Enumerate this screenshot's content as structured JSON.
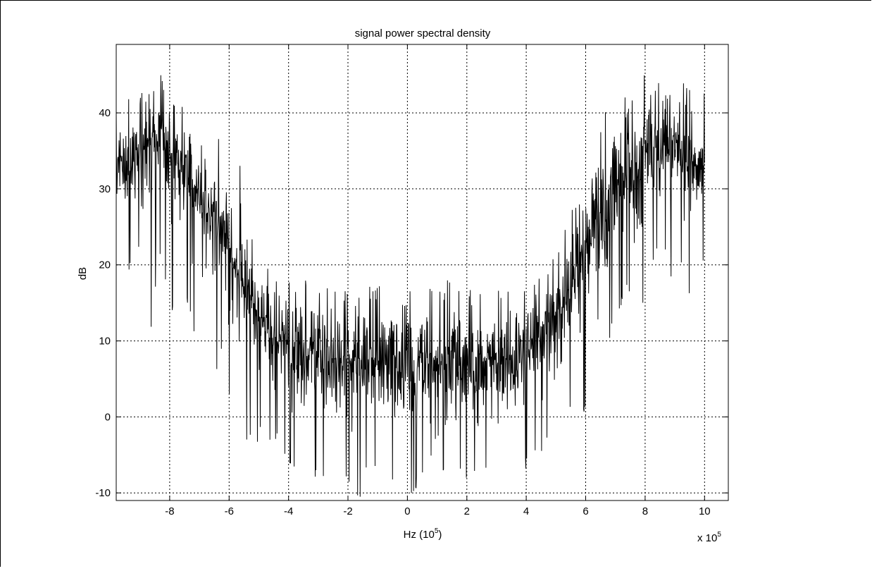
{
  "chart_data": {
    "type": "line",
    "title": "signal power spectral density",
    "xlabel": "Hz (10",
    "xlabel_sup": "5",
    "xlabel_close": ")",
    "ylabel": "dB",
    "x_multiplier_prefix": "x 10",
    "x_multiplier_exp": "5",
    "x_scale": 100000,
    "xlim": [
      -9.8,
      10.8
    ],
    "ylim": [
      -11,
      49
    ],
    "xticks": [
      -8,
      -6,
      -4,
      -2,
      0,
      2,
      4,
      6,
      8,
      10
    ],
    "xtick_labels": [
      "-8",
      "-6",
      "-4",
      "-2",
      "0",
      "2",
      "4",
      "6",
      "8",
      "10"
    ],
    "yticks": [
      -10,
      0,
      10,
      20,
      30,
      40
    ],
    "ytick_labels": [
      "-10",
      "0",
      "10",
      "20",
      "30",
      "40"
    ],
    "grid": true,
    "line_color": "#000000",
    "series": [
      {
        "x": [
          -9.8,
          -9.6,
          -9.4,
          -9.2,
          -9.0,
          -8.8,
          -8.6,
          -8.4,
          -8.2,
          -8.0,
          -7.8,
          -7.6,
          -7.4,
          -7.2,
          -7.0,
          -6.8,
          -6.6,
          -6.4,
          -6.2,
          -6.0,
          -5.8,
          -5.6,
          -5.4,
          -5.2,
          -5.0,
          -4.8,
          -4.6,
          -4.4,
          -4.2,
          -4.0,
          -3.8,
          -3.6,
          -3.4,
          -3.2,
          -3.0,
          -2.8,
          -2.6,
          -2.4,
          -2.2,
          -2.0,
          -1.8,
          -1.6,
          -1.4,
          -1.2,
          -1.0,
          -0.8,
          -0.6,
          -0.4,
          -0.2,
          0.0,
          0.2,
          0.4,
          0.6,
          0.8,
          1.0,
          1.2,
          1.4,
          1.6,
          1.8,
          2.0,
          2.2,
          2.4,
          2.6,
          2.8,
          3.0,
          3.2,
          3.4,
          3.6,
          3.8,
          4.0,
          4.2,
          4.4,
          4.6,
          4.8,
          5.0,
          5.2,
          5.4,
          5.6,
          5.8,
          6.0,
          6.2,
          6.4,
          6.6,
          6.8,
          7.0,
          7.2,
          7.4,
          7.6,
          7.8,
          8.0,
          8.2,
          8.4,
          8.6,
          8.8,
          9.0,
          9.2,
          9.4,
          9.6,
          9.8,
          10.0
        ],
        "upper": [
          42,
          43,
          42,
          44,
          43,
          44,
          42,
          44,
          46,
          44,
          42,
          41,
          41,
          39,
          37,
          35,
          33,
          31,
          30,
          27,
          26,
          24,
          21,
          19,
          18,
          18,
          17,
          18,
          17,
          17,
          17,
          20,
          18,
          17,
          17,
          18,
          17,
          17,
          18,
          17,
          17,
          18,
          19,
          17,
          17,
          18,
          17,
          18,
          17,
          19,
          17,
          18,
          17,
          18,
          17,
          17,
          19,
          18,
          18,
          17,
          17,
          18,
          17,
          17,
          17,
          18,
          18,
          20,
          17,
          17,
          18,
          19,
          19,
          20,
          23,
          23,
          26,
          29,
          30,
          32,
          34,
          37,
          40,
          41,
          43,
          42,
          44,
          43,
          44,
          46,
          44,
          44,
          43,
          44,
          42,
          43,
          44,
          43,
          44,
          43
        ],
        "lower": [
          26,
          25,
          18,
          23,
          22,
          20,
          10,
          21,
          20,
          10,
          19,
          22,
          15,
          10,
          14,
          19,
          13,
          4,
          10,
          3,
          4,
          -6,
          -3,
          -5,
          -3,
          -2,
          -4,
          -4,
          -6,
          -7,
          -7,
          -10,
          -9,
          -11,
          -7,
          -9,
          -8,
          -7,
          -8,
          -9,
          -11,
          -11,
          -8,
          -9,
          -7,
          -9,
          -8,
          -9,
          -8,
          -11,
          -11,
          -8,
          -9,
          -7,
          -9,
          -8,
          -9,
          -8,
          -7,
          -9,
          -9,
          -9,
          -8,
          -8,
          -9,
          -8,
          -9,
          -11,
          -8,
          -7,
          -6,
          -5,
          -5,
          -4,
          -3,
          -3,
          0,
          0,
          -6,
          2,
          4,
          6,
          4,
          10,
          12,
          14,
          16,
          12,
          10,
          17,
          19,
          21,
          22,
          18,
          18,
          20,
          10,
          21,
          22,
          19
        ],
        "center": [
          33,
          33,
          33,
          34,
          34,
          35,
          35,
          35,
          35,
          35,
          34,
          33,
          32,
          31,
          30,
          28,
          27,
          26,
          24,
          22,
          20,
          18,
          16,
          15,
          13,
          12,
          11,
          10,
          10,
          9,
          9,
          8,
          8,
          8,
          8,
          7,
          7,
          7,
          7,
          7,
          7,
          7,
          7,
          7,
          7,
          7,
          7,
          7,
          7,
          7,
          7,
          7,
          7,
          7,
          7,
          7,
          7,
          7,
          7,
          7,
          7,
          7,
          7,
          7,
          8,
          8,
          8,
          8,
          9,
          9,
          10,
          10,
          11,
          12,
          13,
          15,
          16,
          18,
          20,
          22,
          24,
          26,
          27,
          28,
          30,
          31,
          32,
          33,
          34,
          35,
          35,
          35,
          35,
          35,
          34,
          34,
          33,
          33,
          33,
          33
        ]
      }
    ]
  }
}
